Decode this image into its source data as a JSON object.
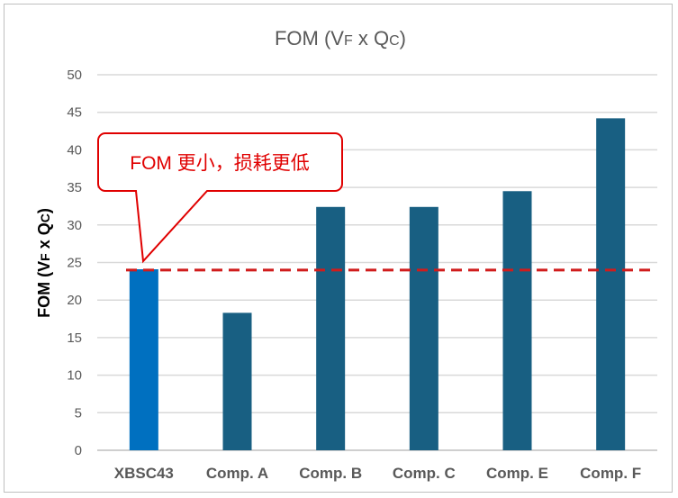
{
  "chart_data": {
    "type": "bar",
    "title": {
      "main": "FOM (V",
      "sub1": "F",
      "mid": " x Q",
      "sub2": "C",
      "end": ")"
    },
    "ylabel": {
      "main": "FOM (V",
      "sub1": "F",
      "mid": " x Q",
      "sub2": "C",
      "end": ")"
    },
    "categories": [
      "XBSC43",
      "Comp. A",
      "Comp. B",
      "Comp. C",
      "Comp. E",
      "Comp. F"
    ],
    "values": [
      24.1,
      18.3,
      32.4,
      32.4,
      34.5,
      44.2
    ],
    "colors": [
      "#0070c0",
      "#185f82",
      "#185f82",
      "#185f82",
      "#185f82",
      "#185f82"
    ],
    "ylim": [
      0,
      50
    ],
    "yticks": [
      "0",
      "5",
      "10",
      "15",
      "20",
      "25",
      "30",
      "35",
      "40",
      "45",
      "50"
    ],
    "grid": true,
    "reference_line": {
      "value": 24,
      "color": "#d01c1c",
      "style": "dashed"
    },
    "annotation": {
      "text": "FOM 更小，损耗更低",
      "color": "#e00000",
      "points_to": "XBSC43"
    }
  }
}
